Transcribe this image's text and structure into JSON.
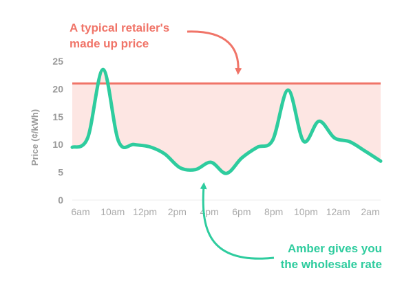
{
  "chart_data": {
    "type": "line",
    "ylabel": "Price (¢/kWh)",
    "xlabel": "",
    "ylim": [
      0,
      25
    ],
    "yticks": [
      0,
      5,
      10,
      15,
      20,
      25
    ],
    "xticks": [
      "6am",
      "10am",
      "12pm",
      "2pm",
      "4pm",
      "6pm",
      "8pm",
      "10pm",
      "12am",
      "2am"
    ],
    "x": [
      "6am",
      "7am",
      "8am",
      "9am",
      "10am",
      "11am",
      "12pm",
      "1pm",
      "2pm",
      "3pm",
      "4pm",
      "5pm",
      "6pm",
      "7pm",
      "8pm",
      "9pm",
      "10pm",
      "11pm",
      "12am",
      "1am",
      "2am"
    ],
    "series": [
      {
        "values": [
          9.5,
          11.2,
          23.5,
          10.6,
          10.0,
          9.6,
          8.3,
          5.8,
          5.5,
          6.8,
          4.8,
          7.6,
          9.5,
          10.8,
          19.8,
          10.6,
          14.2,
          11.2,
          10.5,
          8.8,
          7.0
        ],
        "color": "#2ecc9e"
      }
    ],
    "reference_line": {
      "value": 21.0,
      "color": "#f07468"
    },
    "annotations": [
      {
        "text_lines": [
          "A typical retailer's",
          "made up price"
        ],
        "color": "#f07468"
      },
      {
        "text_lines": [
          "Amber gives you",
          "the wholesale rate"
        ],
        "color": "#2ecc9e"
      }
    ],
    "grid": false
  },
  "colors": {
    "fill": "#fde6e3",
    "axis": "#eeeeee"
  }
}
